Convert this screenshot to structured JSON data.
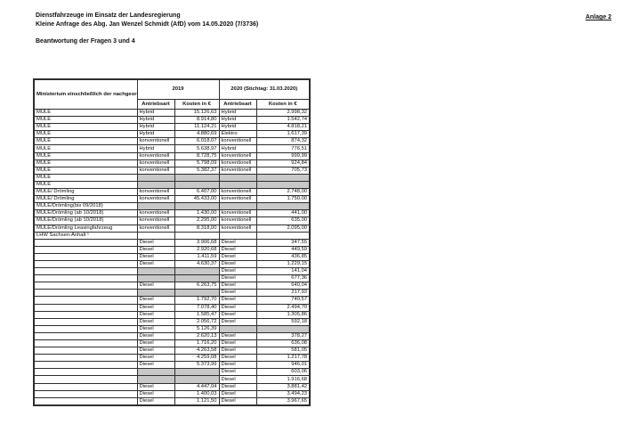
{
  "header": {
    "line1": "Dienstfahrzeuge im Einsatz der Landesregierung",
    "line2": "Kleine Anfrage des Abg. Jan Wenzel Schmidt (AfD) vom 14.05.2020 (7/3736)",
    "subtitle": "Beantwortung der Fragen 3 und 4",
    "annex": "Anlage 2"
  },
  "table": {
    "ministry_header": "Ministerium einschließlich der nachgeordnete Bereiche der Ministerien",
    "group_2019": "2019",
    "group_2020": "2020 (Stichtag: 31.03.2020)",
    "sub_headers": [
      "Antriebsart",
      "Kosten in €",
      "Antriebsart",
      "Kosten in €"
    ],
    "shaded_color": "#c8c8c8",
    "rows": [
      {
        "m": "MULE",
        "a1": "Hybrid",
        "k1": "15.126,63",
        "a2": "Hybrid",
        "k2": "2.998,32",
        "g1": false,
        "g2": false
      },
      {
        "m": "MULE",
        "a1": "Hybrid",
        "k1": "8.914,80",
        "a2": "Hybrid",
        "k2": "1.542,74",
        "g1": false,
        "g2": false
      },
      {
        "m": "MULE",
        "a1": "Hybrid",
        "k1": "11.124,21",
        "a2": "Hybrid",
        "k2": "4.818,21",
        "g1": false,
        "g2": false
      },
      {
        "m": "MULE",
        "a1": "Hybrid",
        "k1": "4.880,69",
        "a2": "Elektro",
        "k2": "1.617,39",
        "g1": false,
        "g2": false
      },
      {
        "m": "MULE",
        "a1": "konventionell",
        "k1": "6.018,07",
        "a2": "konventionell",
        "k2": "874,32",
        "g1": false,
        "g2": false
      },
      {
        "m": "MULE",
        "a1": "Hybrid",
        "k1": "5.638,97",
        "a2": "Hybrid",
        "k2": "776,51",
        "g1": false,
        "g2": false
      },
      {
        "m": "MULE",
        "a1": "konventionell",
        "k1": "8.728,75",
        "a2": "konventionell",
        "k2": "999,99",
        "g1": false,
        "g2": false
      },
      {
        "m": "MULE",
        "a1": "konventionell",
        "k1": "5.798,09",
        "a2": "konventionell",
        "k2": "924,84",
        "g1": false,
        "g2": false
      },
      {
        "m": "MULE",
        "a1": "konventionell",
        "k1": "5.382,37",
        "a2": "konventionell",
        "k2": "705,73",
        "g1": false,
        "g2": false
      },
      {
        "m": "MULE",
        "a1": "",
        "k1": "",
        "a2": "",
        "k2": "",
        "g1": true,
        "g2": true
      },
      {
        "m": "MULE",
        "a1": "",
        "k1": "",
        "a2": "",
        "k2": "",
        "g1": true,
        "g2": true
      },
      {
        "m": "MULE/ Drömling",
        "a1": "konventionell",
        "k1": "6.407,00",
        "a2": "konventionell",
        "k2": "2.748,00",
        "g1": false,
        "g2": false
      },
      {
        "m": "MULE/ Drömling",
        "a1": "konventionell",
        "k1": "45.433,00",
        "a2": "konventionell",
        "k2": "1.750,00",
        "g1": false,
        "g2": false
      },
      {
        "m": "MULE/Drömling(bis 09/2018)",
        "a1": "",
        "k1": "",
        "a2": "",
        "k2": "",
        "g1": true,
        "g2": true
      },
      {
        "m": "MULE/Drömling (ab 10/2018)",
        "a1": "konventionell",
        "k1": "1.430,00",
        "a2": "konventionell",
        "k2": "441,00",
        "g1": false,
        "g2": false
      },
      {
        "m": "MULE/Drömling (ab 10/2018)",
        "a1": "konventionell",
        "k1": "2.295,00",
        "a2": "konventionell",
        "k2": "635,00",
        "g1": false,
        "g2": false
      },
      {
        "m": "MULE/Drömling Leasingfahrzeug",
        "a1": "konventionell",
        "k1": "8.318,00",
        "a2": "konventionell",
        "k2": "2.095,00",
        "g1": false,
        "g2": false
      },
      {
        "m": "LHW Sachsen-Anhalt ¹",
        "a1": "",
        "k1": "",
        "a2": "",
        "k2": "",
        "g1": false,
        "g2": false
      },
      {
        "m": "",
        "a1": "Diesel",
        "k1": "3.906,68",
        "a2": "Diesel",
        "k2": "347,55",
        "g1": false,
        "g2": false
      },
      {
        "m": "",
        "a1": "Diesel",
        "k1": "2.920,68",
        "a2": "Diesel",
        "k2": "449,59",
        "g1": false,
        "g2": false
      },
      {
        "m": "",
        "a1": "Diesel",
        "k1": "1.411,59",
        "a2": "Diesel",
        "k2": "436,85",
        "g1": false,
        "g2": false
      },
      {
        "m": "",
        "a1": "Diesel",
        "k1": "4.630,37",
        "a2": "Diesel",
        "k2": "1.229,15",
        "g1": false,
        "g2": false
      },
      {
        "m": "",
        "a1": "",
        "k1": "",
        "a2": "Diesel",
        "k2": "141,04",
        "g1": true,
        "g2": false
      },
      {
        "m": "",
        "a1": "",
        "k1": "",
        "a2": "Diesel",
        "k2": "677,36",
        "g1": true,
        "g2": false
      },
      {
        "m": "",
        "a1": "Diesel",
        "k1": "6.263,75",
        "a2": "Diesel",
        "k2": "640,04",
        "g1": false,
        "g2": false
      },
      {
        "m": "",
        "a1": "",
        "k1": "",
        "a2": "Diesel",
        "k2": "217,93",
        "g1": true,
        "g2": false
      },
      {
        "m": "",
        "a1": "Diesel",
        "k1": "1.792,70",
        "a2": "Diesel",
        "k2": "740,57",
        "g1": false,
        "g2": false
      },
      {
        "m": "",
        "a1": "Diesel",
        "k1": "7.078,40",
        "a2": "Diesel",
        "k2": "2.494,70",
        "g1": false,
        "g2": false
      },
      {
        "m": "",
        "a1": "Diesel",
        "k1": "1.585,47",
        "a2": "Diesel",
        "k2": "1.305,86",
        "g1": false,
        "g2": false
      },
      {
        "m": "",
        "a1": "Diesel",
        "k1": "2.056,72",
        "a2": "Diesel",
        "k2": "592,18",
        "g1": false,
        "g2": false
      },
      {
        "m": "",
        "a1": "Diesel",
        "k1": "5.126,39",
        "a2": "",
        "k2": "",
        "g1": false,
        "g2": true
      },
      {
        "m": "",
        "a1": "Diesel",
        "k1": "2.620,13",
        "a2": "Diesel",
        "k2": "378,27",
        "g1": false,
        "g2": false
      },
      {
        "m": "",
        "a1": "Diesel",
        "k1": "1.716,20",
        "a2": "Diesel",
        "k2": "636,08",
        "g1": false,
        "g2": false
      },
      {
        "m": "",
        "a1": "Diesel",
        "k1": "4.263,58",
        "a2": "Diesel",
        "k2": "581,05",
        "g1": false,
        "g2": false
      },
      {
        "m": "",
        "a1": "Diesel",
        "k1": "4.259,08",
        "a2": "Diesel",
        "k2": "1.217,78",
        "g1": false,
        "g2": false
      },
      {
        "m": "",
        "a1": "Diesel",
        "k1": "5.373,99",
        "a2": "Diesel",
        "k2": "946,01",
        "g1": false,
        "g2": false
      },
      {
        "m": "",
        "a1": "",
        "k1": "",
        "a2": "Diesel",
        "k2": "603,06",
        "g1": true,
        "g2": false
      },
      {
        "m": "",
        "a1": "",
        "k1": "",
        "a2": "Diesel",
        "k2": "1.916,68",
        "g1": true,
        "g2": false
      },
      {
        "m": "",
        "a1": "Diesel",
        "k1": "4.447,04",
        "a2": "Diesel",
        "k2": "3.881,42",
        "g1": false,
        "g2": false
      },
      {
        "m": "",
        "a1": "Diesel",
        "k1": "1.400,03",
        "a2": "Diesel",
        "k2": "3.494,23",
        "g1": false,
        "g2": false
      },
      {
        "m": "",
        "a1": "Diesel",
        "k1": "1.121,50",
        "a2": "Diesel",
        "k2": "3.967,65",
        "g1": false,
        "g2": false
      }
    ]
  }
}
